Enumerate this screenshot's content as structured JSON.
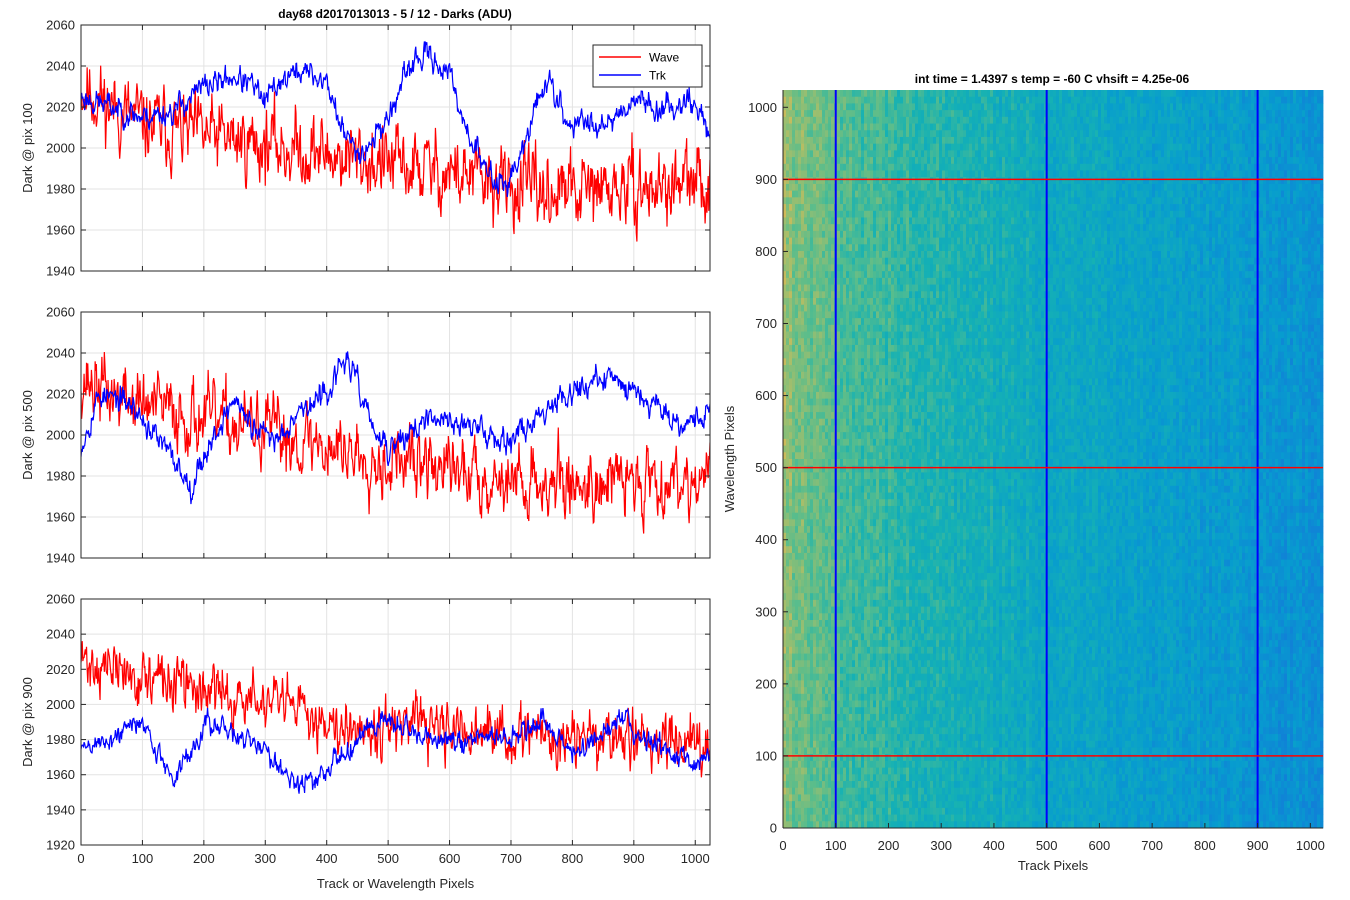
{
  "figure": {
    "left_title": "day68 d2017013013 - 5 / 12 - Darks (ADU)",
    "right_title": "int time = 1.4397 s    temp = -60 C    vhsift = 4.25e-06"
  },
  "chart_data": [
    {
      "type": "line",
      "ylabel": "Dark @ pix 100",
      "xlabel": "",
      "xlim": [
        0,
        1024
      ],
      "ylim": [
        1940,
        2060
      ],
      "xticks": [
        0,
        100,
        200,
        300,
        400,
        500,
        600,
        700,
        800,
        900,
        1000
      ],
      "yticks": [
        1940,
        1960,
        1980,
        2000,
        2020,
        2040,
        2060
      ],
      "grid": true,
      "legend": "top-right",
      "series": [
        {
          "name": "Wave",
          "color": "#ff0000",
          "noise": 13,
          "seed": 11,
          "trend": [
            [
              0,
              2030
            ],
            [
              50,
              2020
            ],
            [
              100,
              2012
            ],
            [
              200,
              2006
            ],
            [
              300,
              2002
            ],
            [
              400,
              1997
            ],
            [
              500,
              1992
            ],
            [
              600,
              1988
            ],
            [
              700,
              1980
            ],
            [
              800,
              1978
            ],
            [
              900,
              1980
            ],
            [
              1024,
              1982
            ]
          ]
        },
        {
          "name": "Trk",
          "color": "#0000ff",
          "noise": 4.5,
          "seed": 23,
          "trend": [
            [
              0,
              2025
            ],
            [
              50,
              2020
            ],
            [
              100,
              2015
            ],
            [
              150,
              2018
            ],
            [
              200,
              2030
            ],
            [
              250,
              2035
            ],
            [
              280,
              2030
            ],
            [
              300,
              2022
            ],
            [
              320,
              2032
            ],
            [
              360,
              2038
            ],
            [
              400,
              2032
            ],
            [
              430,
              2005
            ],
            [
              460,
              1998
            ],
            [
              500,
              2015
            ],
            [
              540,
              2042
            ],
            [
              570,
              2045
            ],
            [
              600,
              2035
            ],
            [
              630,
              2008
            ],
            [
              660,
              1988
            ],
            [
              690,
              1982
            ],
            [
              720,
              1998
            ],
            [
              740,
              2020
            ],
            [
              760,
              2035
            ],
            [
              790,
              2012
            ],
            [
              830,
              2012
            ],
            [
              870,
              2015
            ],
            [
              900,
              2025
            ],
            [
              950,
              2018
            ],
            [
              990,
              2025
            ],
            [
              1024,
              2008
            ]
          ]
        }
      ]
    },
    {
      "type": "line",
      "ylabel": "Dark @ pix 500",
      "xlabel": "",
      "xlim": [
        0,
        1024
      ],
      "ylim": [
        1940,
        2060
      ],
      "xticks": [
        0,
        100,
        200,
        300,
        400,
        500,
        600,
        700,
        800,
        900,
        1000
      ],
      "yticks": [
        1940,
        1960,
        1980,
        2000,
        2020,
        2040,
        2060
      ],
      "grid": true,
      "series": [
        {
          "name": "Wave",
          "color": "#ff0000",
          "noise": 12,
          "seed": 37,
          "trend": [
            [
              0,
              2028
            ],
            [
              50,
              2020
            ],
            [
              100,
              2015
            ],
            [
              200,
              2008
            ],
            [
              300,
              2002
            ],
            [
              400,
              1995
            ],
            [
              500,
              1988
            ],
            [
              600,
              1983
            ],
            [
              700,
              1978
            ],
            [
              800,
              1976
            ],
            [
              900,
              1978
            ],
            [
              1024,
              1980
            ]
          ]
        },
        {
          "name": "Trk",
          "color": "#0000ff",
          "noise": 4.5,
          "seed": 53,
          "trend": [
            [
              0,
              1995
            ],
            [
              30,
              2020
            ],
            [
              80,
              2015
            ],
            [
              120,
              2000
            ],
            [
              150,
              1988
            ],
            [
              180,
              1975
            ],
            [
              200,
              1990
            ],
            [
              250,
              2018
            ],
            [
              280,
              2002
            ],
            [
              320,
              1998
            ],
            [
              350,
              2012
            ],
            [
              380,
              2015
            ],
            [
              410,
              2025
            ],
            [
              430,
              2038
            ],
            [
              450,
              2025
            ],
            [
              480,
              2000
            ],
            [
              500,
              1992
            ],
            [
              550,
              2005
            ],
            [
              600,
              2008
            ],
            [
              650,
              2002
            ],
            [
              700,
              1998
            ],
            [
              740,
              2008
            ],
            [
              780,
              2020
            ],
            [
              830,
              2025
            ],
            [
              870,
              2028
            ],
            [
              900,
              2022
            ],
            [
              940,
              2015
            ],
            [
              980,
              2005
            ],
            [
              1024,
              2012
            ]
          ]
        }
      ]
    },
    {
      "type": "line",
      "ylabel": "Dark @ pix 900",
      "xlabel": "Track or Wavelength Pixels",
      "xlim": [
        0,
        1024
      ],
      "ylim": [
        1920,
        2060
      ],
      "xticks": [
        0,
        100,
        200,
        300,
        400,
        500,
        600,
        700,
        800,
        900,
        1000
      ],
      "yticks": [
        1920,
        1940,
        1960,
        1980,
        2000,
        2020,
        2040,
        2060
      ],
      "grid": true,
      "series": [
        {
          "name": "Wave",
          "color": "#ff0000",
          "noise": 11,
          "seed": 71,
          "trend": [
            [
              0,
              2025
            ],
            [
              50,
              2020
            ],
            [
              100,
              2015
            ],
            [
              200,
              2008
            ],
            [
              300,
              2000
            ],
            [
              400,
              1992
            ],
            [
              500,
              1988
            ],
            [
              600,
              1984
            ],
            [
              700,
              1982
            ],
            [
              800,
              1980
            ],
            [
              900,
              1980
            ],
            [
              1024,
              1982
            ]
          ]
        },
        {
          "name": "Trk",
          "color": "#0000ff",
          "noise": 4.5,
          "seed": 89,
          "trend": [
            [
              0,
              1975
            ],
            [
              50,
              1980
            ],
            [
              100,
              1992
            ],
            [
              120,
              1975
            ],
            [
              150,
              1958
            ],
            [
              180,
              1972
            ],
            [
              200,
              1990
            ],
            [
              250,
              1982
            ],
            [
              300,
              1975
            ],
            [
              350,
              1955
            ],
            [
              380,
              1955
            ],
            [
              420,
              1970
            ],
            [
              460,
              1985
            ],
            [
              500,
              1992
            ],
            [
              550,
              1980
            ],
            [
              600,
              1978
            ],
            [
              650,
              1982
            ],
            [
              700,
              1980
            ],
            [
              750,
              1990
            ],
            [
              800,
              1972
            ],
            [
              850,
              1982
            ],
            [
              880,
              1995
            ],
            [
              900,
              1985
            ],
            [
              950,
              1975
            ],
            [
              1000,
              1965
            ],
            [
              1024,
              1975
            ]
          ]
        }
      ]
    },
    {
      "type": "heatmap",
      "xlabel": "Track Pixels",
      "ylabel": "Wavelength Pixels",
      "xlim": [
        0,
        1024
      ],
      "ylim": [
        0,
        1024
      ],
      "xticks": [
        0,
        100,
        200,
        300,
        400,
        500,
        600,
        700,
        800,
        900,
        1000
      ],
      "yticks": [
        0,
        100,
        200,
        300,
        400,
        500,
        600,
        700,
        800,
        900,
        1000
      ],
      "colormap": "parula",
      "marker_lines": {
        "vertical_x": [
          100,
          500,
          900
        ],
        "vertical_color": "#0000ff",
        "horizontal_y": [
          100,
          500,
          900
        ],
        "horizontal_color": "#ff0000"
      }
    }
  ]
}
